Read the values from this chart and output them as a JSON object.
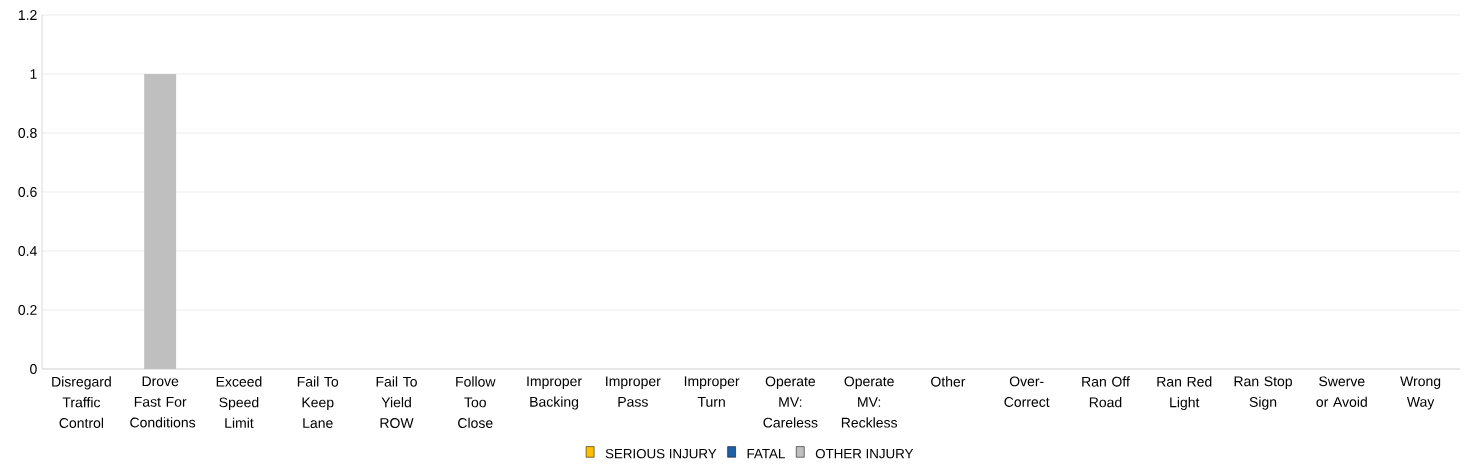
{
  "chart_data": {
    "type": "bar",
    "stacked": true,
    "categories": [
      "Disregard Traffic Control",
      "Drove Fast For Conditions",
      "Exceed Speed Limit",
      "Fail To Keep Lane",
      "Fail To Yield ROW",
      "Follow Too Close",
      "Improper Backing",
      "Improper Pass",
      "Improper Turn",
      "Operate MV: Careless",
      "Operate MV: Reckless",
      "Other",
      "Over-Correct",
      "Ran Off Road",
      "Ran Red Light",
      "Ran Stop Sign",
      "Swerve or Avoid",
      "Wrong Way"
    ],
    "series": [
      {
        "name": "SERIOUS INJURY",
        "color": "#ffc000",
        "values": [
          0,
          0,
          0,
          0,
          0,
          0,
          0,
          0,
          0,
          0,
          0,
          0,
          0,
          0,
          0,
          0,
          0,
          0
        ]
      },
      {
        "name": "FATAL",
        "color": "#1f5fa8",
        "values": [
          0,
          0,
          0,
          0,
          0,
          0,
          0,
          0,
          0,
          0,
          0,
          0,
          0,
          0,
          0,
          0,
          0,
          0
        ]
      },
      {
        "name": "OTHER INJURY",
        "color": "#bfbfbf",
        "values": [
          0,
          1,
          0,
          0,
          0,
          0,
          0,
          0,
          0,
          0,
          0,
          0,
          0,
          0,
          0,
          0,
          0,
          0
        ]
      }
    ],
    "ylim": [
      0,
      1.2
    ],
    "yticks": [
      0,
      0.2,
      0.4,
      0.6,
      0.8,
      1,
      1.2
    ],
    "grid": "y",
    "legend": "bottom"
  }
}
